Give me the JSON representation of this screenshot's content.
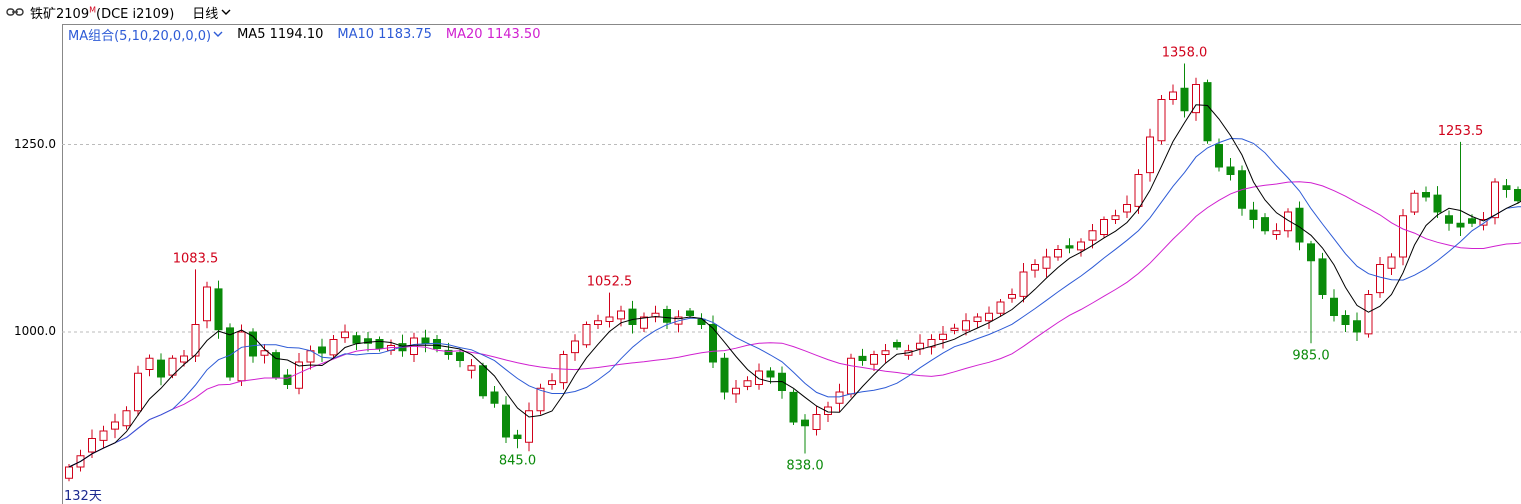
{
  "symbol": {
    "name": "铁矿2109",
    "marker": "M",
    "exchange_code": "(DCE i2109)"
  },
  "period": {
    "label": "日线"
  },
  "ma_legend": {
    "combo": "MA组合(5,10,20,0,0,0)",
    "ma5": "MA5 1194.10",
    "ma10": "MA10 1183.75",
    "ma20": "MA20 1143.50"
  },
  "days_label": "132天",
  "colors": {
    "up": "#d0021b",
    "down": "#0a8a0a",
    "ma5": "#000000",
    "ma10": "#2e5bd6",
    "ma20": "#d020d0",
    "annotation_high": "#d0021b",
    "annotation_low": "#0a8a0a",
    "grid": "#bbbbbb"
  },
  "icons": {
    "link": "link-icon",
    "dropdown": "chevron-down-icon"
  },
  "chart_data": {
    "type": "candlestick",
    "y_ticks": [
      {
        "value": 1250,
        "label": "1250.0"
      },
      {
        "value": 1000,
        "label": "1000.0"
      }
    ],
    "ylim": [
      790,
      1395
    ],
    "grid": true,
    "annotations": [
      {
        "index": 11,
        "value": 1083.5,
        "label": "1083.5",
        "kind": "high"
      },
      {
        "index": 39,
        "value": 845.0,
        "label": "845.0",
        "kind": "low"
      },
      {
        "index": 47,
        "value": 1052.5,
        "label": "1052.5",
        "kind": "high"
      },
      {
        "index": 64,
        "value": 838.0,
        "label": "838.0",
        "kind": "low"
      },
      {
        "index": 97,
        "value": 1358.0,
        "label": "1358.0",
        "kind": "high"
      },
      {
        "index": 108,
        "value": 985.0,
        "label": "985.0",
        "kind": "low"
      },
      {
        "index": 121,
        "value": 1253.5,
        "label": "1253.5",
        "kind": "high"
      }
    ],
    "closes": [
      820,
      835,
      858,
      868,
      880,
      895,
      945,
      965,
      940,
      965,
      968,
      1010,
      1060,
      1003,
      940,
      1000,
      968,
      975,
      940,
      930,
      960,
      975,
      972,
      990,
      1000,
      985,
      985,
      978,
      982,
      975,
      992,
      985,
      978,
      970,
      962,
      955,
      915,
      905,
      860,
      858,
      895,
      925,
      935,
      970,
      988,
      1010,
      1015,
      1020,
      1028,
      1010,
      1020,
      1025,
      1013,
      1020,
      1022,
      1010,
      960,
      920,
      925,
      935,
      948,
      940,
      922,
      880,
      875,
      890,
      900,
      920,
      965,
      962,
      970,
      975,
      980,
      975,
      985,
      990,
      997,
      1005,
      1015,
      1020,
      1025,
      1040,
      1050,
      1080,
      1090,
      1100,
      1110,
      1112,
      1120,
      1135,
      1150,
      1155,
      1170,
      1210,
      1260,
      1310,
      1320,
      1295,
      1330,
      1255,
      1220,
      1210,
      1165,
      1150,
      1135,
      1135,
      1160,
      1120,
      1095,
      1050,
      1022,
      1010,
      1000,
      1050,
      1090,
      1100,
      1155,
      1185,
      1180,
      1160,
      1145,
      1140,
      1145,
      1150,
      1200,
      1190,
      1175,
      1190,
      1210,
      1165
    ]
  }
}
